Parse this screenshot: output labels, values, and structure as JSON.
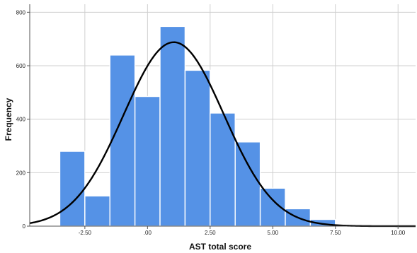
{
  "chart_data": {
    "type": "bar",
    "xlabel": "AST total score",
    "ylabel": "Frequency",
    "xlim": [
      -4.7,
      10.7
    ],
    "ylim": [
      0,
      830
    ],
    "x_ticks": [
      -2.5,
      0,
      2.5,
      5,
      7.5,
      10
    ],
    "x_tick_labels": [
      "-2.50",
      ".00",
      "2.50",
      "5.00",
      "7.50",
      "10.00"
    ],
    "y_ticks": [
      0,
      200,
      400,
      600,
      800
    ],
    "y_tick_labels": [
      "0",
      "200",
      "400",
      "600",
      "800"
    ],
    "grid": true,
    "bins": [
      {
        "start": -3.5,
        "end": -2.5,
        "value": 280
      },
      {
        "start": -2.5,
        "end": -1.5,
        "value": 113
      },
      {
        "start": -1.5,
        "end": -0.5,
        "value": 640
      },
      {
        "start": -0.5,
        "end": 0.5,
        "value": 485
      },
      {
        "start": 0.5,
        "end": 1.5,
        "value": 747
      },
      {
        "start": 1.5,
        "end": 2.5,
        "value": 583
      },
      {
        "start": 2.5,
        "end": 3.5,
        "value": 423
      },
      {
        "start": 3.5,
        "end": 4.5,
        "value": 315
      },
      {
        "start": 4.5,
        "end": 5.5,
        "value": 142
      },
      {
        "start": 5.5,
        "end": 6.5,
        "value": 65
      },
      {
        "start": 6.5,
        "end": 7.5,
        "value": 25
      },
      {
        "start": 7.5,
        "end": 8.5,
        "value": 4
      }
    ],
    "normal_curve": {
      "mean": 1.05,
      "sd": 2.0,
      "peak": 688
    },
    "colors": {
      "bar_fill": "#5592e6",
      "bar_stroke": "#ffffff",
      "curve": "#000000",
      "grid": "#cfcfcf",
      "axis": "#555555"
    }
  }
}
